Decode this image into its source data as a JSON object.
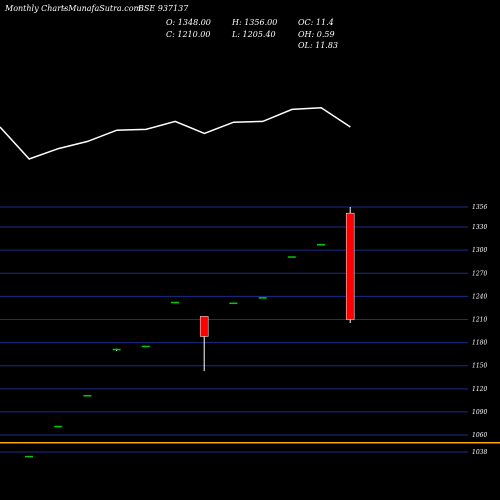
{
  "header": {
    "left_title": "Monthly Charts",
    "site": "- MunafaSutra.com",
    "symbol": "BSE 937137",
    "ohlc": {
      "o": "O: 1348.00",
      "h": "H: 1356.00",
      "oc": "OC: 11.4",
      "c": "C: 1210.00",
      "l": "L: 1205.40",
      "oh": "OH: 0.59",
      "ol": "OL: 11.83"
    }
  },
  "colors": {
    "background": "#000000",
    "line": "#ffffff",
    "up": "#00cc00",
    "down": "#ff0000",
    "grid": "#1a2b8a",
    "reference_line": "#ffa500"
  },
  "chart_data": {
    "type": "candlestick",
    "y_ticks": [
      1356,
      1330,
      1300,
      1270,
      1240,
      1210,
      1180,
      1150,
      1120,
      1090,
      1060,
      1038
    ],
    "y_range": [
      1038,
      1356
    ],
    "reference_level": 1050,
    "candles": [
      {
        "o": 1033,
        "h": 1033,
        "l": 1033,
        "c": 1033
      },
      {
        "o": 1072,
        "h": 1072,
        "l": 1072,
        "c": 1072
      },
      {
        "o": 1112,
        "h": 1112,
        "l": 1112,
        "c": 1112
      },
      {
        "o": 1170,
        "h": 1172,
        "l": 1169,
        "c": 1172
      },
      {
        "o": 1176,
        "h": 1176,
        "l": 1176,
        "c": 1176
      },
      {
        "o": 1233,
        "h": 1233,
        "l": 1233,
        "c": 1233
      },
      {
        "o": 1214,
        "h": 1214,
        "l": 1143,
        "c": 1188
      },
      {
        "o": 1232,
        "h": 1232,
        "l": 1232,
        "c": 1232
      },
      {
        "o": 1239,
        "h": 1239,
        "l": 1239,
        "c": 1239
      },
      {
        "o": 1292,
        "h": 1292,
        "l": 1292,
        "c": 1292
      },
      {
        "o": 1308,
        "h": 1308,
        "l": 1308,
        "c": 1308
      },
      {
        "o": 1348,
        "h": 1356,
        "l": 1205.4,
        "c": 1210
      }
    ],
    "overlay_line": {
      "description_free": true,
      "values": [
        60,
        20,
        33,
        42,
        56,
        57,
        67,
        52,
        66,
        67,
        82,
        84,
        60
      ]
    }
  }
}
